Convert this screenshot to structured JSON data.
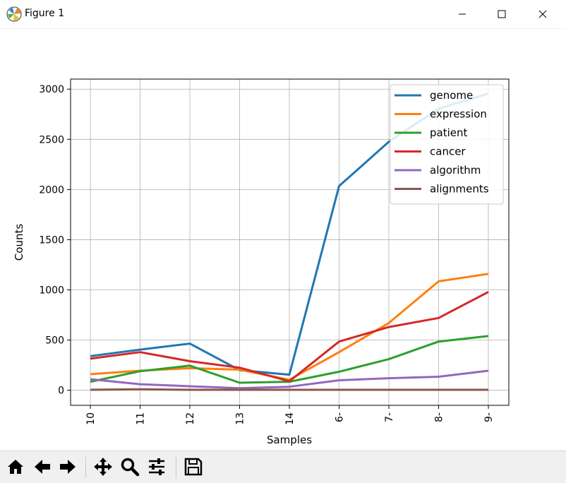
{
  "window": {
    "title": "Figure 1",
    "controls": [
      "minimize-icon",
      "maximize-icon",
      "close-icon"
    ]
  },
  "toolbar": {
    "buttons": [
      "home-icon",
      "back-arrow-icon",
      "forward-arrow-icon",
      "pan-icon",
      "zoom-icon",
      "configure-subplots-icon",
      "save-icon"
    ]
  },
  "chart_data": {
    "type": "line",
    "title": "",
    "xlabel": "Samples",
    "ylabel": "Counts",
    "categories": [
      "10",
      "11",
      "12",
      "13",
      "14",
      "6-",
      "7-",
      "8-",
      "9-"
    ],
    "ylim": [
      -150,
      3100
    ],
    "yticks": [
      0,
      500,
      1000,
      1500,
      2000,
      2500,
      3000
    ],
    "grid": true,
    "legend_position": "top-right",
    "series": [
      {
        "name": "genome",
        "color": "#1f77b4",
        "values": [
          340,
          405,
          465,
          200,
          155,
          2035,
          2475,
          2805,
          2955
        ]
      },
      {
        "name": "expression",
        "color": "#ff7f0e",
        "values": [
          160,
          195,
          220,
          205,
          105,
          380,
          670,
          1085,
          1160
        ]
      },
      {
        "name": "patient",
        "color": "#2ca02c",
        "values": [
          85,
          190,
          245,
          75,
          85,
          185,
          310,
          485,
          540
        ]
      },
      {
        "name": "cancer",
        "color": "#d62728",
        "values": [
          315,
          380,
          290,
          225,
          90,
          485,
          630,
          720,
          980
        ]
      },
      {
        "name": "algorithm",
        "color": "#9467bd",
        "values": [
          110,
          60,
          40,
          20,
          35,
          100,
          120,
          135,
          195
        ]
      },
      {
        "name": "alignments",
        "color": "#8c564b",
        "values": [
          5,
          10,
          5,
          5,
          5,
          5,
          5,
          5,
          5
        ]
      }
    ]
  }
}
